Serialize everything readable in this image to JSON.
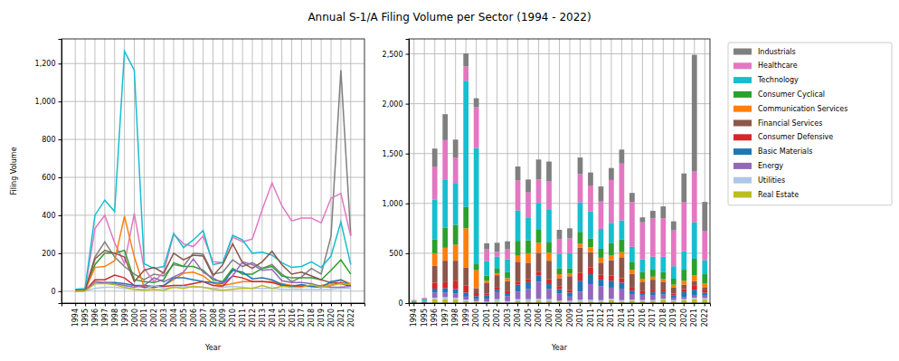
{
  "chart_data": [
    {
      "type": "line",
      "title": "Annual S-1/A Filing Volume per Sector (1994 - 2022)",
      "xlabel": "Year",
      "ylabel": "Filing Volume",
      "x": [
        1994,
        1995,
        1996,
        1997,
        1998,
        1999,
        2000,
        2001,
        2002,
        2003,
        2004,
        2005,
        2006,
        2007,
        2008,
        2009,
        2010,
        2011,
        2012,
        2013,
        2014,
        2015,
        2016,
        2017,
        2018,
        2019,
        2020,
        2021,
        2022
      ],
      "xlim": [
        1992.6,
        2023.4
      ],
      "xticks": [
        1994,
        1995,
        1996,
        1997,
        1998,
        1999,
        2000,
        2001,
        2002,
        2003,
        2004,
        2005,
        2006,
        2007,
        2008,
        2009,
        2010,
        2011,
        2012,
        2013,
        2014,
        2015,
        2016,
        2017,
        2018,
        2019,
        2020,
        2021,
        2022
      ],
      "ylim": [
        -63,
        1330
      ],
      "yticks": [
        0,
        200,
        400,
        600,
        800,
        {
          "value": 1000,
          "label": "1,000"
        },
        {
          "value": 1200,
          "label": "1,200"
        }
      ],
      "grid": true,
      "series": [
        {
          "name": "Industrials",
          "color": "#7f7f7f",
          "values": [
            5,
            5,
            180,
            260,
            180,
            130,
            90,
            60,
            90,
            80,
            140,
            130,
            200,
            195,
            90,
            100,
            165,
            130,
            150,
            120,
            140,
            90,
            50,
            75,
            120,
            90,
            290,
            1165,
            295
          ]
        },
        {
          "name": "Healthcare",
          "color": "#e377c2",
          "values": [
            5,
            10,
            330,
            400,
            255,
            145,
            410,
            120,
            50,
            100,
            300,
            250,
            235,
            290,
            155,
            150,
            285,
            260,
            275,
            430,
            570,
            450,
            370,
            385,
            385,
            360,
            490,
            515,
            290
          ]
        },
        {
          "name": "Technology",
          "color": "#17becf",
          "values": [
            10,
            15,
            400,
            480,
            420,
            1265,
            1165,
            145,
            120,
            130,
            305,
            230,
            270,
            320,
            140,
            150,
            295,
            270,
            200,
            205,
            190,
            150,
            125,
            130,
            155,
            125,
            185,
            365,
            140
          ]
        },
        {
          "name": "Consumer Cyclical",
          "color": "#2ca02c",
          "values": [
            5,
            5,
            140,
            200,
            200,
            215,
            60,
            50,
            45,
            60,
            150,
            130,
            130,
            110,
            60,
            50,
            120,
            90,
            90,
            120,
            130,
            80,
            70,
            70,
            70,
            60,
            110,
            165,
            90
          ]
        },
        {
          "name": "Communication Services",
          "color": "#ff7f0e",
          "values": [
            0,
            5,
            125,
            130,
            160,
            395,
            180,
            20,
            20,
            30,
            60,
            95,
            100,
            80,
            40,
            30,
            40,
            50,
            50,
            50,
            50,
            40,
            30,
            30,
            25,
            30,
            40,
            60,
            40
          ]
        },
        {
          "name": "Financial Services",
          "color": "#8c564b",
          "values": [
            5,
            5,
            170,
            215,
            200,
            180,
            50,
            110,
            125,
            95,
            200,
            165,
            190,
            185,
            80,
            140,
            250,
            150,
            120,
            155,
            210,
            140,
            90,
            100,
            80,
            60,
            45,
            40,
            25
          ]
        },
        {
          "name": "Consumer Defensive",
          "color": "#d62728",
          "values": [
            0,
            2,
            60,
            60,
            85,
            70,
            30,
            20,
            20,
            25,
            30,
            30,
            40,
            50,
            30,
            25,
            80,
            70,
            50,
            50,
            45,
            30,
            25,
            25,
            25,
            20,
            30,
            45,
            30
          ]
        },
        {
          "name": "Basic Materials",
          "color": "#1f77b4",
          "values": [
            0,
            2,
            40,
            45,
            45,
            40,
            30,
            30,
            25,
            30,
            70,
            70,
            60,
            50,
            45,
            40,
            110,
            100,
            65,
            70,
            60,
            35,
            25,
            35,
            25,
            20,
            50,
            60,
            30
          ]
        },
        {
          "name": "Energy",
          "color": "#9467bd",
          "values": [
            0,
            2,
            50,
            45,
            40,
            30,
            20,
            30,
            70,
            50,
            75,
            100,
            170,
            100,
            70,
            40,
            80,
            155,
            140,
            110,
            115,
            55,
            45,
            45,
            40,
            25,
            20,
            20,
            25
          ]
        },
        {
          "name": "Utilities",
          "color": "#aec7e8",
          "values": [
            0,
            0,
            15,
            20,
            20,
            15,
            10,
            10,
            30,
            15,
            20,
            25,
            20,
            20,
            15,
            20,
            25,
            20,
            15,
            15,
            15,
            10,
            10,
            10,
            10,
            10,
            10,
            15,
            15
          ]
        },
        {
          "name": "Real Estate",
          "color": "#bcbd22",
          "values": [
            0,
            0,
            40,
            40,
            35,
            20,
            10,
            5,
            10,
            5,
            20,
            15,
            25,
            20,
            10,
            5,
            10,
            15,
            15,
            30,
            15,
            25,
            20,
            20,
            35,
            20,
            30,
            40,
            35
          ]
        }
      ]
    },
    {
      "type": "bar",
      "stacked": true,
      "xlabel": "Year",
      "legend": "outside right",
      "categories": [
        "1994",
        "1995",
        "1996",
        "1997",
        "1998",
        "1999",
        "2000",
        "2001",
        "2002",
        "2003",
        "2004",
        "2005",
        "2006",
        "2007",
        "2008",
        "2009",
        "2010",
        "2011",
        "2012",
        "2013",
        "2014",
        "2015",
        "2016",
        "2017",
        "2018",
        "2019",
        "2020",
        "2021",
        "2022"
      ],
      "ylim": [
        0,
        2650
      ],
      "yticks": [
        0,
        500,
        {
          "value": 1000,
          "label": "1,000"
        },
        {
          "value": 1500,
          "label": "1,500"
        },
        {
          "value": 2000,
          "label": "2,000"
        },
        {
          "value": 2500,
          "label": "2,500"
        }
      ],
      "grid": true,
      "series": [
        {
          "name": "Industrials",
          "color": "#7f7f7f",
          "values": [
            5,
            5,
            180,
            260,
            180,
            130,
            90,
            60,
            90,
            80,
            140,
            130,
            200,
            195,
            90,
            100,
            165,
            130,
            150,
            120,
            140,
            90,
            50,
            75,
            120,
            90,
            290,
            1165,
            295
          ]
        },
        {
          "name": "Healthcare",
          "color": "#e377c2",
          "values": [
            5,
            10,
            330,
            400,
            255,
            145,
            410,
            120,
            50,
            100,
            300,
            250,
            235,
            290,
            155,
            150,
            285,
            260,
            275,
            430,
            570,
            450,
            370,
            385,
            385,
            360,
            490,
            515,
            290
          ]
        },
        {
          "name": "Technology",
          "color": "#17becf",
          "values": [
            10,
            15,
            400,
            480,
            420,
            1265,
            1165,
            145,
            120,
            130,
            305,
            230,
            270,
            320,
            140,
            150,
            295,
            270,
            200,
            205,
            190,
            150,
            125,
            130,
            155,
            125,
            185,
            365,
            140
          ]
        },
        {
          "name": "Consumer Cyclical",
          "color": "#2ca02c",
          "values": [
            5,
            5,
            140,
            200,
            200,
            215,
            60,
            50,
            45,
            60,
            150,
            130,
            130,
            110,
            60,
            50,
            120,
            90,
            90,
            120,
            130,
            80,
            70,
            70,
            70,
            60,
            110,
            165,
            90
          ]
        },
        {
          "name": "Communication Services",
          "color": "#ff7f0e",
          "values": [
            0,
            5,
            125,
            130,
            160,
            395,
            180,
            20,
            20,
            30,
            60,
            95,
            100,
            80,
            40,
            30,
            40,
            50,
            50,
            50,
            50,
            40,
            30,
            30,
            25,
            30,
            40,
            60,
            40
          ]
        },
        {
          "name": "Financial Services",
          "color": "#8c564b",
          "values": [
            5,
            5,
            170,
            215,
            200,
            180,
            50,
            110,
            125,
            95,
            200,
            165,
            190,
            185,
            80,
            140,
            250,
            150,
            120,
            155,
            210,
            140,
            90,
            100,
            80,
            60,
            45,
            40,
            25
          ]
        },
        {
          "name": "Consumer Defensive",
          "color": "#d62728",
          "values": [
            0,
            2,
            60,
            60,
            85,
            70,
            30,
            20,
            20,
            25,
            30,
            30,
            40,
            50,
            30,
            25,
            80,
            70,
            50,
            50,
            45,
            30,
            25,
            25,
            25,
            20,
            30,
            45,
            30
          ]
        },
        {
          "name": "Basic Materials",
          "color": "#1f77b4",
          "values": [
            0,
            2,
            40,
            45,
            45,
            40,
            30,
            30,
            25,
            30,
            70,
            70,
            60,
            50,
            45,
            40,
            110,
            100,
            65,
            70,
            60,
            35,
            25,
            35,
            25,
            20,
            50,
            60,
            30
          ]
        },
        {
          "name": "Energy",
          "color": "#9467bd",
          "values": [
            0,
            2,
            50,
            45,
            40,
            30,
            20,
            30,
            70,
            50,
            75,
            100,
            170,
            100,
            70,
            40,
            80,
            155,
            140,
            110,
            115,
            55,
            45,
            45,
            40,
            25,
            20,
            20,
            25
          ]
        },
        {
          "name": "Utilities",
          "color": "#aec7e8",
          "values": [
            0,
            0,
            15,
            20,
            20,
            15,
            10,
            10,
            30,
            15,
            20,
            25,
            20,
            20,
            15,
            20,
            25,
            20,
            15,
            15,
            15,
            10,
            10,
            10,
            10,
            10,
            10,
            15,
            15
          ]
        },
        {
          "name": "Real Estate",
          "color": "#bcbd22",
          "values": [
            0,
            0,
            40,
            40,
            35,
            20,
            10,
            5,
            10,
            5,
            20,
            15,
            25,
            20,
            10,
            5,
            10,
            15,
            15,
            30,
            15,
            25,
            20,
            20,
            35,
            20,
            30,
            40,
            35
          ]
        }
      ]
    }
  ]
}
